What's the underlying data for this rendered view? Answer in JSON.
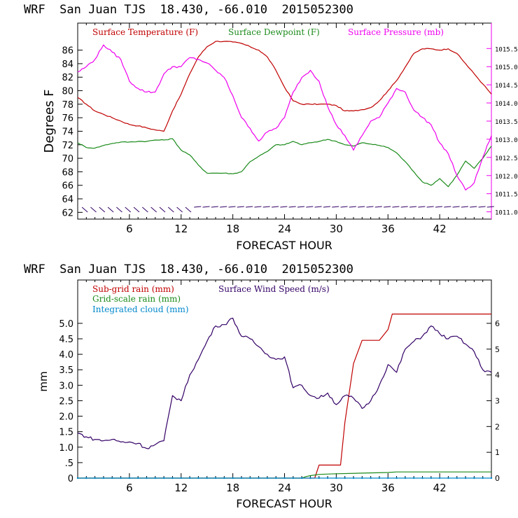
{
  "header": {
    "title1": "WRF  San Juan TJS  18.430, -66.010  2015052300",
    "title2": "WRF  San Juan TJS  18.430, -66.010  2015052300"
  },
  "chart_data": [
    {
      "type": "line",
      "xlabel": "FORECAST HOUR",
      "ylabel": "Degrees F",
      "xlim": [
        0,
        48
      ],
      "ylim": [
        61,
        90
      ],
      "y2lim": [
        1010.8,
        1016.2
      ],
      "x_ticks": [
        "6",
        "12",
        "18",
        "24",
        "30",
        "36",
        "42"
      ],
      "x_tick_values": [
        6,
        12,
        18,
        24,
        30,
        36,
        42
      ],
      "y_ticks": [
        "62",
        "64",
        "66",
        "68",
        "70",
        "72",
        "74",
        "76",
        "78",
        "80",
        "82",
        "84",
        "86"
      ],
      "y_tick_values": [
        62,
        64,
        66,
        68,
        70,
        72,
        74,
        76,
        78,
        80,
        82,
        84,
        86
      ],
      "y2_ticks": [
        "1011.0",
        "1011.5",
        "1012.0",
        "1012.5",
        "1013.0",
        "1013.5",
        "1014.0",
        "1014.5",
        "1015.0",
        "1015.5"
      ],
      "y2_tick_values": [
        1011.0,
        1011.5,
        1012.0,
        1012.5,
        1013.0,
        1013.5,
        1014.0,
        1014.5,
        1015.0,
        1015.5
      ],
      "legend": [
        {
          "label": "Surface Temperature (F)",
          "color": "#c00000"
        },
        {
          "label": "Surface Dewpoint (F)",
          "color": "#1a8a1a"
        },
        {
          "label": "Surface Pressure (mb)",
          "color": "#ee00ee"
        }
      ],
      "series": [
        {
          "name": "Surface Temperature (F)",
          "color": "#c00000",
          "axis": "left",
          "x": [
            0,
            1,
            2,
            3,
            4,
            5,
            6,
            7,
            8,
            9,
            10,
            11,
            12,
            13,
            14,
            15,
            16,
            17,
            18,
            19,
            20,
            21,
            22,
            23,
            24,
            25,
            26,
            27,
            28,
            29,
            30,
            31,
            32,
            33,
            34,
            35,
            36,
            37,
            38,
            39,
            40,
            41,
            42,
            43,
            44,
            45,
            46,
            47,
            48
          ],
          "y": [
            79.0,
            78.0,
            77.0,
            76.5,
            76.0,
            75.5,
            75.0,
            74.8,
            74.5,
            74.2,
            74.0,
            77.0,
            79.5,
            82.5,
            85.0,
            86.5,
            87.3,
            87.3,
            87.2,
            87.0,
            86.5,
            86.0,
            85.0,
            83.0,
            80.5,
            78.5,
            78.0,
            78.0,
            78.0,
            78.0,
            77.8,
            77.0,
            77.0,
            77.2,
            77.5,
            78.5,
            80.0,
            81.5,
            83.5,
            85.5,
            86.2,
            86.2,
            86.0,
            86.2,
            85.5,
            84.0,
            82.5,
            81.0,
            79.5
          ]
        },
        {
          "name": "Surface Dewpoint (F)",
          "color": "#1a8a1a",
          "axis": "left",
          "x": [
            0,
            1,
            2,
            3,
            4,
            5,
            6,
            7,
            8,
            9,
            10,
            11,
            12,
            13,
            14,
            15,
            16,
            17,
            18,
            19,
            20,
            21,
            22,
            23,
            24,
            25,
            26,
            27,
            28,
            29,
            30,
            31,
            32,
            33,
            34,
            35,
            36,
            37,
            38,
            39,
            40,
            41,
            42,
            43,
            44,
            45,
            46,
            47,
            48
          ],
          "y": [
            72.3,
            71.6,
            71.5,
            71.9,
            72.2,
            72.4,
            72.4,
            72.5,
            72.5,
            72.7,
            72.7,
            72.9,
            71.2,
            70.5,
            69.0,
            67.8,
            67.8,
            67.8,
            67.7,
            68.0,
            69.5,
            70.3,
            71.0,
            72.0,
            72.0,
            72.5,
            72.0,
            72.3,
            72.5,
            72.8,
            72.5,
            72.0,
            71.8,
            72.3,
            72.1,
            71.9,
            71.6,
            70.8,
            69.5,
            68.0,
            66.5,
            66.0,
            67.0,
            65.8,
            67.5,
            69.6,
            68.5,
            70.0,
            71.8
          ]
        },
        {
          "name": "Surface Pressure (mb)",
          "color": "#ee00ee",
          "axis": "right",
          "x": [
            0,
            1,
            2,
            3,
            4,
            5,
            6,
            7,
            8,
            9,
            10,
            11,
            12,
            13,
            14,
            15,
            16,
            17,
            18,
            19,
            20,
            21,
            22,
            23,
            24,
            25,
            26,
            27,
            28,
            29,
            30,
            31,
            32,
            33,
            34,
            35,
            36,
            37,
            38,
            39,
            40,
            41,
            42,
            43,
            44,
            45,
            46,
            47,
            48
          ],
          "y": [
            1014.85,
            1015.0,
            1015.2,
            1015.6,
            1015.4,
            1015.2,
            1014.6,
            1014.4,
            1014.3,
            1014.3,
            1014.8,
            1015.0,
            1015.0,
            1015.25,
            1015.2,
            1015.1,
            1014.9,
            1014.7,
            1014.2,
            1013.6,
            1013.3,
            1012.95,
            1013.2,
            1013.3,
            1013.6,
            1014.3,
            1014.7,
            1014.9,
            1014.6,
            1013.9,
            1013.4,
            1013.1,
            1012.7,
            1013.1,
            1013.5,
            1013.6,
            1014.0,
            1014.4,
            1014.3,
            1013.8,
            1013.6,
            1013.4,
            1012.9,
            1012.6,
            1012.0,
            1011.6,
            1011.8,
            1012.5,
            1013.1
          ]
        }
      ]
    },
    {
      "type": "line",
      "xlabel": "FORECAST HOUR",
      "ylabel": "mm",
      "xlim": [
        0,
        48
      ],
      "ylim": [
        0,
        6.4
      ],
      "y2lim": [
        0,
        7.68
      ],
      "x_ticks": [
        "6",
        "12",
        "18",
        "24",
        "30",
        "36",
        "42"
      ],
      "x_tick_values": [
        6,
        12,
        18,
        24,
        30,
        36,
        42
      ],
      "y_ticks": [
        "0",
        ".5",
        "1.0",
        "1.5",
        "2.0",
        "2.5",
        "3.0",
        "3.5",
        "4.0",
        "4.5",
        "5.0"
      ],
      "y_tick_values": [
        0,
        0.5,
        1.0,
        1.5,
        2.0,
        2.5,
        3.0,
        3.5,
        4.0,
        4.5,
        5.0
      ],
      "y2_ticks": [
        "0",
        "1",
        "2",
        "3",
        "4",
        "5",
        "6"
      ],
      "y2_tick_values": [
        0,
        1,
        2,
        3,
        4,
        5,
        6
      ],
      "legend": [
        {
          "label": "Sub-grid rain (mm)",
          "color": "#c00000"
        },
        {
          "label": "Surface Wind Speed (m/s)",
          "color": "#330066"
        },
        {
          "label": "Grid-scale rain (mm)",
          "color": "#1a8a1a"
        },
        {
          "label": "Integrated cloud (mm)",
          "color": "#0088cc"
        }
      ],
      "series": [
        {
          "name": "Sub-grid rain (mm)",
          "color": "#c00000",
          "axis": "left",
          "x": [
            0,
            27.5,
            28,
            30.5,
            31,
            32,
            33,
            34,
            35,
            36,
            36.5,
            37,
            38,
            48
          ],
          "y": [
            0,
            0,
            0.42,
            0.42,
            1.8,
            3.7,
            4.45,
            4.45,
            4.45,
            4.8,
            5.3,
            5.3,
            5.3,
            5.3
          ]
        },
        {
          "name": "Grid-scale rain (mm)",
          "color": "#1a8a1a",
          "axis": "left",
          "x": [
            0,
            26,
            26.5,
            27,
            28,
            30,
            33,
            36,
            37,
            48
          ],
          "y": [
            0,
            0,
            0.05,
            0.08,
            0.12,
            0.14,
            0.16,
            0.18,
            0.2,
            0.2
          ]
        },
        {
          "name": "Integrated cloud (mm)",
          "color": "#0088cc",
          "axis": "left",
          "x": [
            0,
            48
          ],
          "y": [
            0,
            0
          ]
        },
        {
          "name": "Surface Wind Speed (m/s)",
          "color": "#330066",
          "axis": "right",
          "x": [
            0,
            1,
            2,
            3,
            4,
            5,
            6,
            7,
            8,
            9,
            10,
            11,
            12,
            13,
            14,
            15,
            16,
            17,
            18,
            19,
            20,
            21,
            22,
            23,
            24,
            25,
            26,
            27,
            28,
            29,
            30,
            31,
            32,
            33,
            34,
            35,
            36,
            37,
            38,
            39,
            40,
            41,
            42,
            43,
            44,
            45,
            46,
            47,
            48
          ],
          "y": [
            1.75,
            1.6,
            1.5,
            1.45,
            1.5,
            1.4,
            1.4,
            1.35,
            1.15,
            1.3,
            1.45,
            3.2,
            3.0,
            4.0,
            4.6,
            5.3,
            5.9,
            5.95,
            6.2,
            5.5,
            5.4,
            5.1,
            4.8,
            4.6,
            4.7,
            3.5,
            3.6,
            3.2,
            3.1,
            3.3,
            2.85,
            3.2,
            3.1,
            2.7,
            3.0,
            3.6,
            4.4,
            4.1,
            5.0,
            5.3,
            5.5,
            5.9,
            5.6,
            5.4,
            5.5,
            5.2,
            4.9,
            4.2,
            4.1
          ]
        }
      ]
    }
  ]
}
